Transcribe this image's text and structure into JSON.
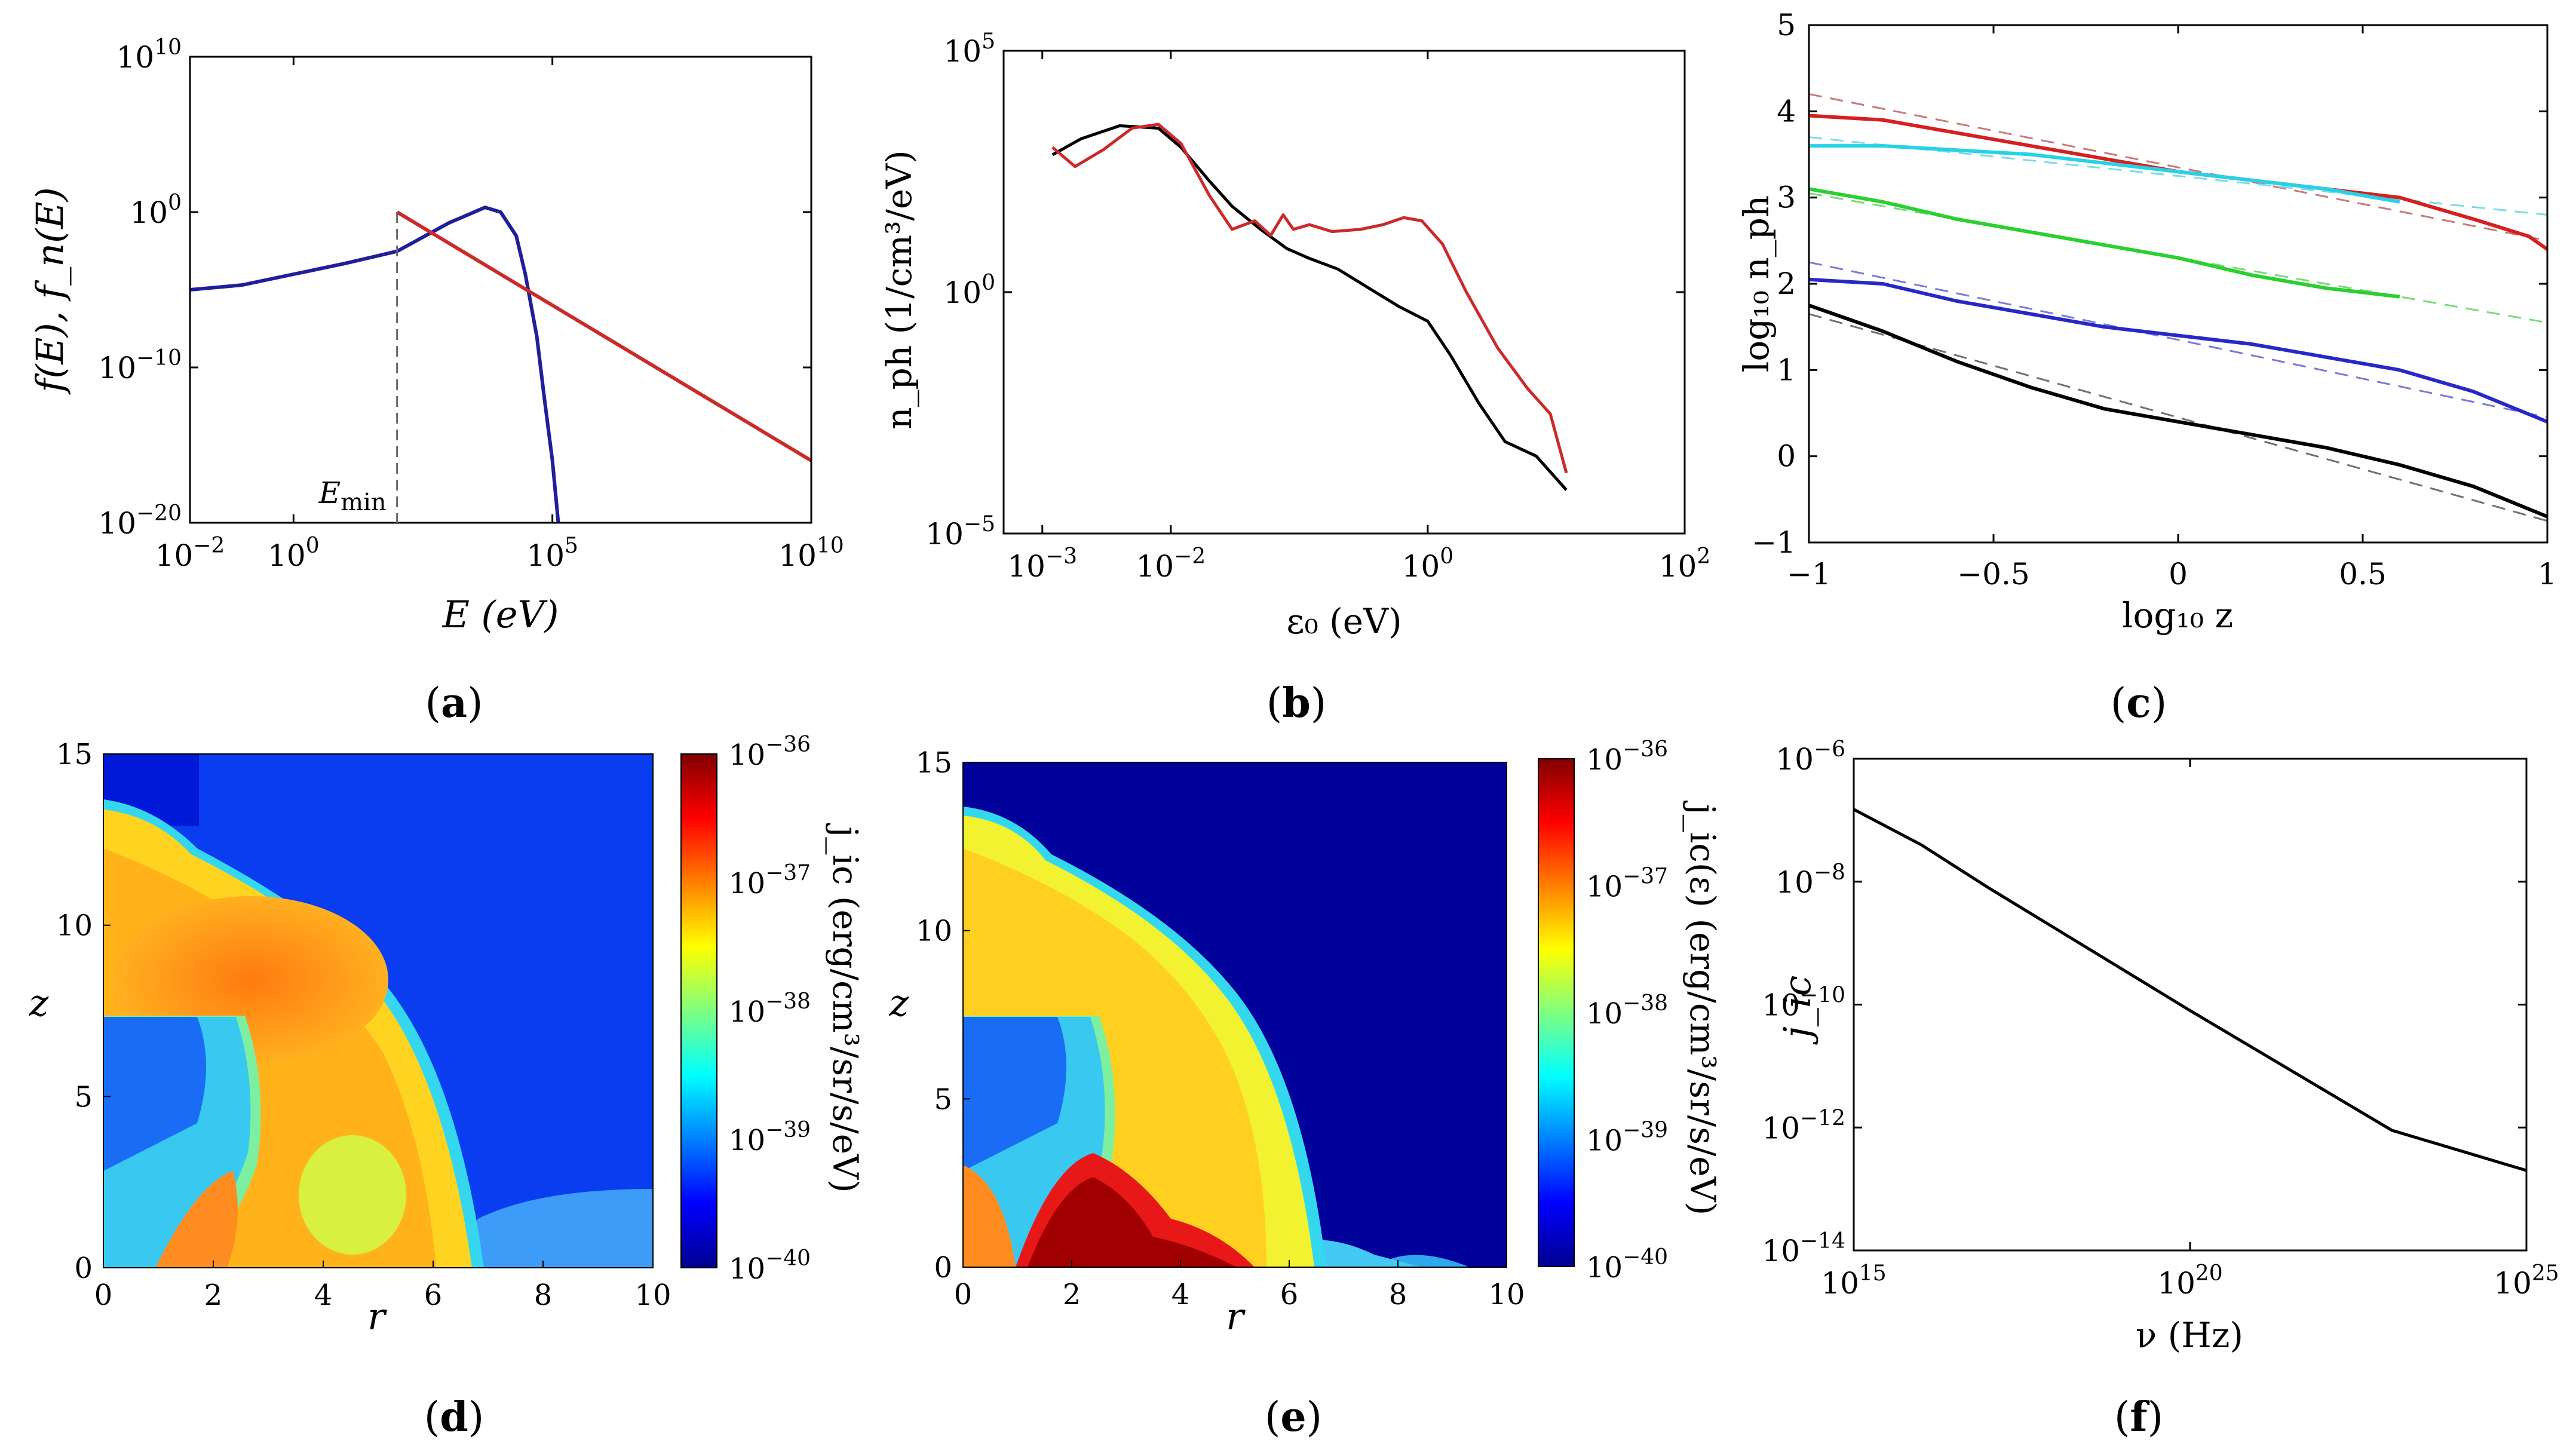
{
  "figure": {
    "panels": [
      "a",
      "b",
      "c",
      "d",
      "e",
      "f"
    ]
  },
  "chart_data": [
    {
      "panel": "a",
      "type": "line",
      "caption_letter": "a",
      "xlabel": "E (eV)",
      "ylabel": "f(E), f_n(E)",
      "xscale": "log",
      "yscale": "log",
      "xlim": [
        0.01,
        10000000000.0
      ],
      "ylim": [
        1e-20,
        10000000000.0
      ],
      "xticks": [
        {
          "v": 0.01,
          "base": "10",
          "exp": "−2"
        },
        {
          "v": 1,
          "base": "10",
          "exp": "0"
        },
        {
          "v": 100000.0,
          "base": "10",
          "exp": "5"
        },
        {
          "v": 10000000000.0,
          "base": "10",
          "exp": "10"
        }
      ],
      "yticks": [
        {
          "v": 1e-20,
          "base": "10",
          "exp": "−20"
        },
        {
          "v": 1e-10,
          "base": "10",
          "exp": "−10"
        },
        {
          "v": 1,
          "base": "10",
          "exp": "0"
        },
        {
          "v": 10000000000.0,
          "base": "10",
          "exp": "10"
        }
      ],
      "annotation": {
        "text": "E",
        "sub": "min",
        "x": 100
      },
      "series": [
        {
          "name": "f(E)",
          "color": "#1f1f9a",
          "x": [
            0.01,
            0.1,
            1,
            10,
            100,
            1000,
            5000,
            10000,
            20000,
            30000,
            50000,
            70000,
            100000,
            130000
          ],
          "y": [
            1e-05,
            2e-05,
            0.0001,
            0.0005,
            0.003,
            0.2,
            2,
            1,
            0.03,
            0.0001,
            1e-08,
            1e-12,
            1e-16,
            1e-20
          ]
        },
        {
          "name": "f_n(E)",
          "color": "#cc2a2a",
          "x": [
            100,
            10000000000.0
          ],
          "y": [
            1,
            1e-16
          ]
        }
      ]
    },
    {
      "panel": "b",
      "type": "line",
      "caption_letter": "b",
      "xlabel": "ε₀ (eV)",
      "ylabel": "n_ph (1/cm³/eV)",
      "xscale": "log",
      "yscale": "log",
      "xlim": [
        0.0005,
        100
      ],
      "ylim": [
        1e-05,
        100000.0
      ],
      "xticks": [
        {
          "v": 0.001,
          "base": "10",
          "exp": "−3"
        },
        {
          "v": 0.01,
          "base": "10",
          "exp": "−2"
        },
        {
          "v": 1,
          "base": "10",
          "exp": "0"
        },
        {
          "v": 100,
          "base": "10",
          "exp": "2"
        }
      ],
      "yticks": [
        {
          "v": 1e-05,
          "base": "10",
          "exp": "−5"
        },
        {
          "v": 1,
          "base": "10",
          "exp": "0"
        },
        {
          "v": 100000.0,
          "base": "10",
          "exp": "5"
        }
      ],
      "series": [
        {
          "name": "black",
          "color": "#000000",
          "x": [
            0.0012,
            0.002,
            0.004,
            0.008,
            0.012,
            0.02,
            0.03,
            0.05,
            0.08,
            0.12,
            0.2,
            0.35,
            0.6,
            1.0,
            1.5,
            2.5,
            4,
            7,
            12
          ],
          "y": [
            700,
            1500,
            2800,
            2500,
            1000,
            200,
            60,
            20,
            8,
            5,
            3,
            1.2,
            0.5,
            0.25,
            0.05,
            0.005,
            0.0008,
            0.0004,
            8e-05
          ]
        },
        {
          "name": "red",
          "color": "#cc2a2a",
          "x": [
            0.0012,
            0.0018,
            0.003,
            0.005,
            0.008,
            0.012,
            0.02,
            0.03,
            0.045,
            0.06,
            0.075,
            0.09,
            0.12,
            0.18,
            0.3,
            0.45,
            0.65,
            0.9,
            1.3,
            2,
            3.5,
            6,
            9,
            12
          ],
          "y": [
            1000,
            400,
            900,
            2500,
            3000,
            1200,
            100,
            20,
            30,
            15,
            40,
            20,
            25,
            18,
            20,
            25,
            35,
            30,
            10,
            1,
            0.07,
            0.01,
            0.003,
            0.00018
          ]
        }
      ]
    },
    {
      "panel": "c",
      "type": "line",
      "caption_letter": "c",
      "xlabel": "log₁₀ z",
      "ylabel": "log₁₀ n_ph",
      "xscale": "linear",
      "yscale": "linear",
      "xlim": [
        -1,
        1
      ],
      "ylim": [
        -1,
        5
      ],
      "xticks": [
        -1,
        -0.5,
        0,
        0.5,
        1
      ],
      "xticklabels": [
        "−1",
        "−0.5",
        "0",
        "0.5",
        "1"
      ],
      "yticks": [
        -1,
        0,
        1,
        2,
        3,
        4,
        5
      ],
      "yticklabels": [
        "−1",
        "0",
        "1",
        "2",
        "3",
        "4",
        "5"
      ],
      "series": [
        {
          "name": "red",
          "color": "#d62020",
          "x": [
            -1,
            -0.8,
            -0.6,
            -0.4,
            -0.2,
            0,
            0.2,
            0.4,
            0.6,
            0.8,
            0.95,
            1.0
          ],
          "y": [
            3.95,
            3.9,
            3.75,
            3.6,
            3.45,
            3.3,
            3.2,
            3.1,
            3.0,
            2.75,
            2.55,
            2.4
          ]
        },
        {
          "name": "cyan",
          "color": "#27d2e6",
          "x": [
            -1,
            -0.8,
            -0.6,
            -0.4,
            -0.2,
            0,
            0.2,
            0.4,
            0.6
          ],
          "y": [
            3.6,
            3.6,
            3.55,
            3.5,
            3.4,
            3.3,
            3.2,
            3.1,
            2.95
          ]
        },
        {
          "name": "green",
          "color": "#2ad030",
          "x": [
            -1,
            -0.8,
            -0.6,
            -0.4,
            -0.2,
            0,
            0.2,
            0.4,
            0.6
          ],
          "y": [
            3.1,
            2.95,
            2.75,
            2.6,
            2.45,
            2.3,
            2.1,
            1.95,
            1.85
          ]
        },
        {
          "name": "blue",
          "color": "#2828c8",
          "x": [
            -1,
            -0.8,
            -0.6,
            -0.4,
            -0.2,
            0,
            0.2,
            0.4,
            0.6,
            0.8,
            1.0
          ],
          "y": [
            2.05,
            2.0,
            1.8,
            1.65,
            1.5,
            1.4,
            1.3,
            1.15,
            1.0,
            0.75,
            0.4
          ]
        },
        {
          "name": "black",
          "color": "#000000",
          "x": [
            -1,
            -0.8,
            -0.6,
            -0.4,
            -0.2,
            0,
            0.2,
            0.4,
            0.6,
            0.8,
            1.0
          ],
          "y": [
            1.75,
            1.45,
            1.1,
            0.8,
            0.55,
            0.4,
            0.25,
            0.1,
            -0.1,
            -0.35,
            -0.7
          ]
        }
      ],
      "fits": [
        {
          "color": "#c87a7a",
          "x": [
            -1,
            1
          ],
          "y": [
            4.2,
            2.5
          ]
        },
        {
          "color": "#7adce8",
          "x": [
            -1,
            1
          ],
          "y": [
            3.7,
            2.8
          ]
        },
        {
          "color": "#7ada7a",
          "x": [
            -1,
            1
          ],
          "y": [
            3.05,
            1.55
          ]
        },
        {
          "color": "#7a7ad8",
          "x": [
            -1,
            1
          ],
          "y": [
            2.25,
            0.45
          ]
        },
        {
          "color": "#707070",
          "x": [
            -1,
            1
          ],
          "y": [
            1.65,
            -0.75
          ]
        }
      ]
    },
    {
      "panel": "d",
      "type": "heatmap",
      "caption_letter": "d",
      "xlabel": "r",
      "ylabel": "z",
      "xlim": [
        0,
        10
      ],
      "ylim": [
        0,
        15
      ],
      "xticks": [
        0,
        2,
        4,
        6,
        8,
        10
      ],
      "yticks": [
        0,
        5,
        10,
        15
      ],
      "colorbar": {
        "label": "j_ic (erg/cm³/sr/s/eV)",
        "ticks": [
          {
            "base": "10",
            "exp": "−36"
          },
          {
            "base": "10",
            "exp": "−37"
          },
          {
            "base": "10",
            "exp": "−38"
          },
          {
            "base": "10",
            "exp": "−39"
          },
          {
            "base": "10",
            "exp": "−40"
          }
        ]
      },
      "regions": [
        {
          "name": "background",
          "level": "low-blue"
        },
        {
          "name": "emission-shell",
          "level": "yellow-orange"
        },
        {
          "name": "inner-cavity",
          "level": "cyan-blue"
        }
      ]
    },
    {
      "panel": "e",
      "type": "heatmap",
      "caption_letter": "e",
      "xlabel": "r",
      "ylabel": "z",
      "xlim": [
        0,
        10
      ],
      "ylim": [
        0,
        15
      ],
      "xticks": [
        0,
        2,
        4,
        6,
        8,
        10
      ],
      "yticks": [
        0,
        5,
        10,
        15
      ],
      "colorbar": {
        "label": "j_ic(ε) (erg/cm³/sr/s/eV)",
        "ticks": [
          {
            "base": "10",
            "exp": "−36"
          },
          {
            "base": "10",
            "exp": "−37"
          },
          {
            "base": "10",
            "exp": "−38"
          },
          {
            "base": "10",
            "exp": "−39"
          },
          {
            "base": "10",
            "exp": "−40"
          }
        ]
      },
      "regions": [
        {
          "name": "background",
          "level": "dark-blue"
        },
        {
          "name": "emission-shell",
          "level": "yellow"
        },
        {
          "name": "base-hotspot",
          "level": "dark-red"
        }
      ]
    },
    {
      "panel": "f",
      "type": "line",
      "caption_letter": "f",
      "xlabel": "ν (Hz)",
      "ylabel": "j_ic",
      "xscale": "log",
      "yscale": "log",
      "xlim": [
        1000000000000000.0,
        1e+25
      ],
      "ylim": [
        1e-14,
        1e-06
      ],
      "xticks": [
        {
          "v": 1000000000000000.0,
          "base": "10",
          "exp": "15"
        },
        {
          "v": 1e+20,
          "base": "10",
          "exp": "20"
        },
        {
          "v": 1e+25,
          "base": "10",
          "exp": "25"
        }
      ],
      "yticks": [
        {
          "v": 1e-14,
          "base": "10",
          "exp": "−14"
        },
        {
          "v": 1e-12,
          "base": "10",
          "exp": "−12"
        },
        {
          "v": 1e-10,
          "base": "10",
          "exp": "−10"
        },
        {
          "v": 1e-08,
          "base": "10",
          "exp": "−8"
        },
        {
          "v": 1e-06,
          "base": "10",
          "exp": "−6"
        }
      ],
      "series": [
        {
          "name": "j_ic",
          "color": "#000000",
          "x": [
            1000000000000000.0,
            1e+16,
            1e+17,
            1e+20,
            1e+23,
            1e+25
          ],
          "y": [
            1.5e-07,
            4e-08,
            8e-09,
            8e-11,
            9e-13,
            2e-13
          ]
        }
      ]
    }
  ]
}
